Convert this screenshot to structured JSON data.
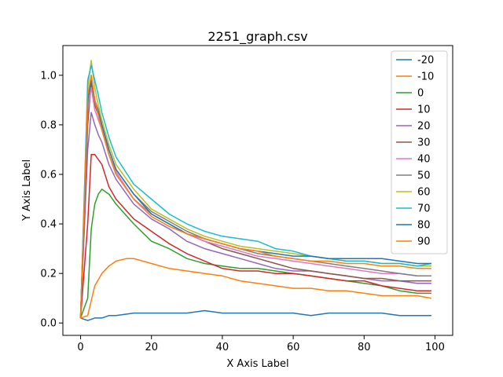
{
  "chart_data": {
    "type": "line",
    "title": "2251_graph.csv",
    "xlabel": "X Axis Label",
    "ylabel": "Y Axis Label",
    "xlim": [
      -5,
      105
    ],
    "ylim": [
      -0.05,
      1.12
    ],
    "xticks": [
      0,
      20,
      40,
      60,
      80,
      100
    ],
    "yticks": [
      0.0,
      0.2,
      0.4,
      0.6,
      0.8,
      1.0
    ],
    "xtick_labels": [
      "0",
      "20",
      "40",
      "60",
      "80",
      "100"
    ],
    "ytick_labels": [
      "0.0",
      "0.2",
      "0.4",
      "0.6",
      "0.8",
      "1.0"
    ],
    "grid": false,
    "legend_position": "top-right",
    "series": [
      {
        "name": "-20",
        "color": "#1f77b4",
        "x": [
          0,
          2,
          4,
          6,
          8,
          10,
          15,
          20,
          25,
          30,
          35,
          40,
          45,
          50,
          55,
          60,
          65,
          70,
          75,
          80,
          85,
          90,
          95,
          99
        ],
        "y": [
          0.02,
          0.01,
          0.02,
          0.02,
          0.03,
          0.03,
          0.04,
          0.04,
          0.04,
          0.04,
          0.05,
          0.04,
          0.04,
          0.04,
          0.04,
          0.04,
          0.03,
          0.04,
          0.04,
          0.04,
          0.04,
          0.03,
          0.03,
          0.03
        ]
      },
      {
        "name": "-10",
        "color": "#ff7f0e",
        "x": [
          0,
          2,
          4,
          6,
          8,
          10,
          13,
          15,
          20,
          25,
          30,
          35,
          40,
          45,
          50,
          55,
          60,
          65,
          70,
          75,
          80,
          85,
          90,
          95,
          99
        ],
        "y": [
          0.02,
          0.03,
          0.15,
          0.2,
          0.23,
          0.25,
          0.26,
          0.26,
          0.24,
          0.22,
          0.21,
          0.2,
          0.19,
          0.17,
          0.16,
          0.15,
          0.14,
          0.14,
          0.13,
          0.13,
          0.12,
          0.11,
          0.11,
          0.11,
          0.1
        ]
      },
      {
        "name": "0",
        "color": "#2ca02c",
        "x": [
          0,
          2,
          3,
          4,
          5,
          6,
          8,
          10,
          15,
          20,
          25,
          30,
          35,
          40,
          45,
          50,
          55,
          60,
          65,
          70,
          75,
          80,
          85,
          90,
          95,
          99
        ],
        "y": [
          0.02,
          0.1,
          0.38,
          0.48,
          0.52,
          0.54,
          0.52,
          0.48,
          0.4,
          0.33,
          0.3,
          0.26,
          0.24,
          0.23,
          0.22,
          0.22,
          0.21,
          0.2,
          0.19,
          0.18,
          0.17,
          0.16,
          0.15,
          0.13,
          0.12,
          0.12
        ]
      },
      {
        "name": "10",
        "color": "#d62728",
        "x": [
          0,
          2,
          3,
          4,
          5,
          6,
          8,
          10,
          15,
          20,
          25,
          30,
          35,
          40,
          45,
          50,
          55,
          60,
          65,
          70,
          75,
          80,
          85,
          90,
          95,
          99
        ],
        "y": [
          0.02,
          0.4,
          0.68,
          0.68,
          0.66,
          0.64,
          0.55,
          0.5,
          0.42,
          0.37,
          0.32,
          0.28,
          0.25,
          0.22,
          0.21,
          0.21,
          0.2,
          0.2,
          0.19,
          0.18,
          0.17,
          0.17,
          0.15,
          0.14,
          0.13,
          0.13
        ]
      },
      {
        "name": "20",
        "color": "#9467bd",
        "x": [
          0,
          2,
          3,
          4,
          5,
          6,
          8,
          10,
          15,
          20,
          25,
          30,
          35,
          40,
          45,
          50,
          55,
          60,
          65,
          70,
          75,
          80,
          85,
          90,
          95,
          99
        ],
        "y": [
          0.02,
          0.7,
          0.85,
          0.8,
          0.76,
          0.73,
          0.64,
          0.58,
          0.48,
          0.42,
          0.38,
          0.33,
          0.3,
          0.28,
          0.26,
          0.24,
          0.22,
          0.21,
          0.21,
          0.2,
          0.19,
          0.18,
          0.17,
          0.17,
          0.16,
          0.16
        ]
      },
      {
        "name": "30",
        "color": "#8c564b",
        "x": [
          0,
          2,
          3,
          4,
          5,
          6,
          8,
          10,
          15,
          20,
          25,
          30,
          35,
          40,
          45,
          50,
          55,
          60,
          65,
          70,
          75,
          80,
          85,
          90,
          95,
          99
        ],
        "y": [
          0.02,
          0.8,
          0.97,
          0.88,
          0.84,
          0.78,
          0.68,
          0.6,
          0.5,
          0.44,
          0.4,
          0.36,
          0.33,
          0.3,
          0.28,
          0.26,
          0.24,
          0.22,
          0.21,
          0.2,
          0.19,
          0.18,
          0.18,
          0.17,
          0.17,
          0.17
        ]
      },
      {
        "name": "40",
        "color": "#e377c2",
        "x": [
          0,
          2,
          3,
          4,
          5,
          6,
          8,
          10,
          15,
          20,
          25,
          30,
          35,
          40,
          45,
          50,
          55,
          60,
          65,
          70,
          75,
          80,
          85,
          90,
          95,
          99
        ],
        "y": [
          0.02,
          0.85,
          0.95,
          0.86,
          0.82,
          0.78,
          0.68,
          0.61,
          0.5,
          0.44,
          0.4,
          0.36,
          0.33,
          0.31,
          0.29,
          0.27,
          0.26,
          0.25,
          0.24,
          0.23,
          0.22,
          0.21,
          0.2,
          0.2,
          0.19,
          0.19
        ]
      },
      {
        "name": "50",
        "color": "#7f7f7f",
        "x": [
          0,
          2,
          3,
          4,
          5,
          6,
          8,
          10,
          15,
          20,
          25,
          30,
          35,
          40,
          45,
          50,
          55,
          60,
          65,
          70,
          75,
          80,
          85,
          90,
          95,
          99
        ],
        "y": [
          0.02,
          0.88,
          1.0,
          0.9,
          0.86,
          0.8,
          0.7,
          0.62,
          0.52,
          0.45,
          0.41,
          0.37,
          0.34,
          0.32,
          0.3,
          0.28,
          0.27,
          0.26,
          0.25,
          0.24,
          0.23,
          0.22,
          0.21,
          0.2,
          0.19,
          0.19
        ]
      },
      {
        "name": "60",
        "color": "#bcbd22",
        "x": [
          0,
          2,
          3,
          4,
          5,
          6,
          8,
          10,
          15,
          20,
          25,
          30,
          35,
          40,
          45,
          50,
          55,
          60,
          65,
          70,
          75,
          80,
          85,
          90,
          95,
          99
        ],
        "y": [
          0.02,
          0.95,
          1.06,
          0.95,
          0.88,
          0.82,
          0.72,
          0.64,
          0.54,
          0.46,
          0.42,
          0.38,
          0.35,
          0.33,
          0.31,
          0.3,
          0.29,
          0.28,
          0.27,
          0.26,
          0.25,
          0.25,
          0.24,
          0.24,
          0.23,
          0.23
        ]
      },
      {
        "name": "70",
        "color": "#17becf",
        "x": [
          0,
          2,
          3,
          4,
          5,
          6,
          8,
          10,
          15,
          20,
          25,
          30,
          35,
          40,
          45,
          50,
          55,
          60,
          65,
          70,
          75,
          80,
          85,
          90,
          95,
          99
        ],
        "y": [
          0.02,
          0.98,
          1.04,
          0.98,
          0.92,
          0.85,
          0.75,
          0.67,
          0.56,
          0.5,
          0.44,
          0.4,
          0.37,
          0.35,
          0.34,
          0.33,
          0.3,
          0.29,
          0.27,
          0.26,
          0.25,
          0.25,
          0.24,
          0.24,
          0.23,
          0.24
        ]
      },
      {
        "name": "80",
        "color": "#1f77b4",
        "x": [
          0,
          2,
          3,
          4,
          5,
          6,
          8,
          10,
          15,
          20,
          25,
          30,
          35,
          40,
          45,
          50,
          55,
          60,
          65,
          70,
          75,
          80,
          85,
          90,
          95,
          99
        ],
        "y": [
          0.02,
          0.9,
          0.98,
          0.9,
          0.85,
          0.8,
          0.7,
          0.62,
          0.52,
          0.44,
          0.4,
          0.36,
          0.34,
          0.32,
          0.3,
          0.29,
          0.28,
          0.27,
          0.27,
          0.26,
          0.26,
          0.26,
          0.26,
          0.25,
          0.24,
          0.24
        ]
      },
      {
        "name": "90",
        "color": "#ff7f0e",
        "x": [
          0,
          2,
          3,
          4,
          5,
          6,
          8,
          10,
          15,
          20,
          25,
          30,
          35,
          40,
          45,
          50,
          55,
          60,
          65,
          70,
          75,
          80,
          85,
          90,
          95,
          99
        ],
        "y": [
          0.02,
          0.92,
          1.0,
          0.9,
          0.84,
          0.78,
          0.68,
          0.6,
          0.5,
          0.43,
          0.39,
          0.36,
          0.34,
          0.32,
          0.3,
          0.29,
          0.27,
          0.26,
          0.25,
          0.25,
          0.24,
          0.24,
          0.23,
          0.23,
          0.22,
          0.22
        ]
      }
    ]
  }
}
